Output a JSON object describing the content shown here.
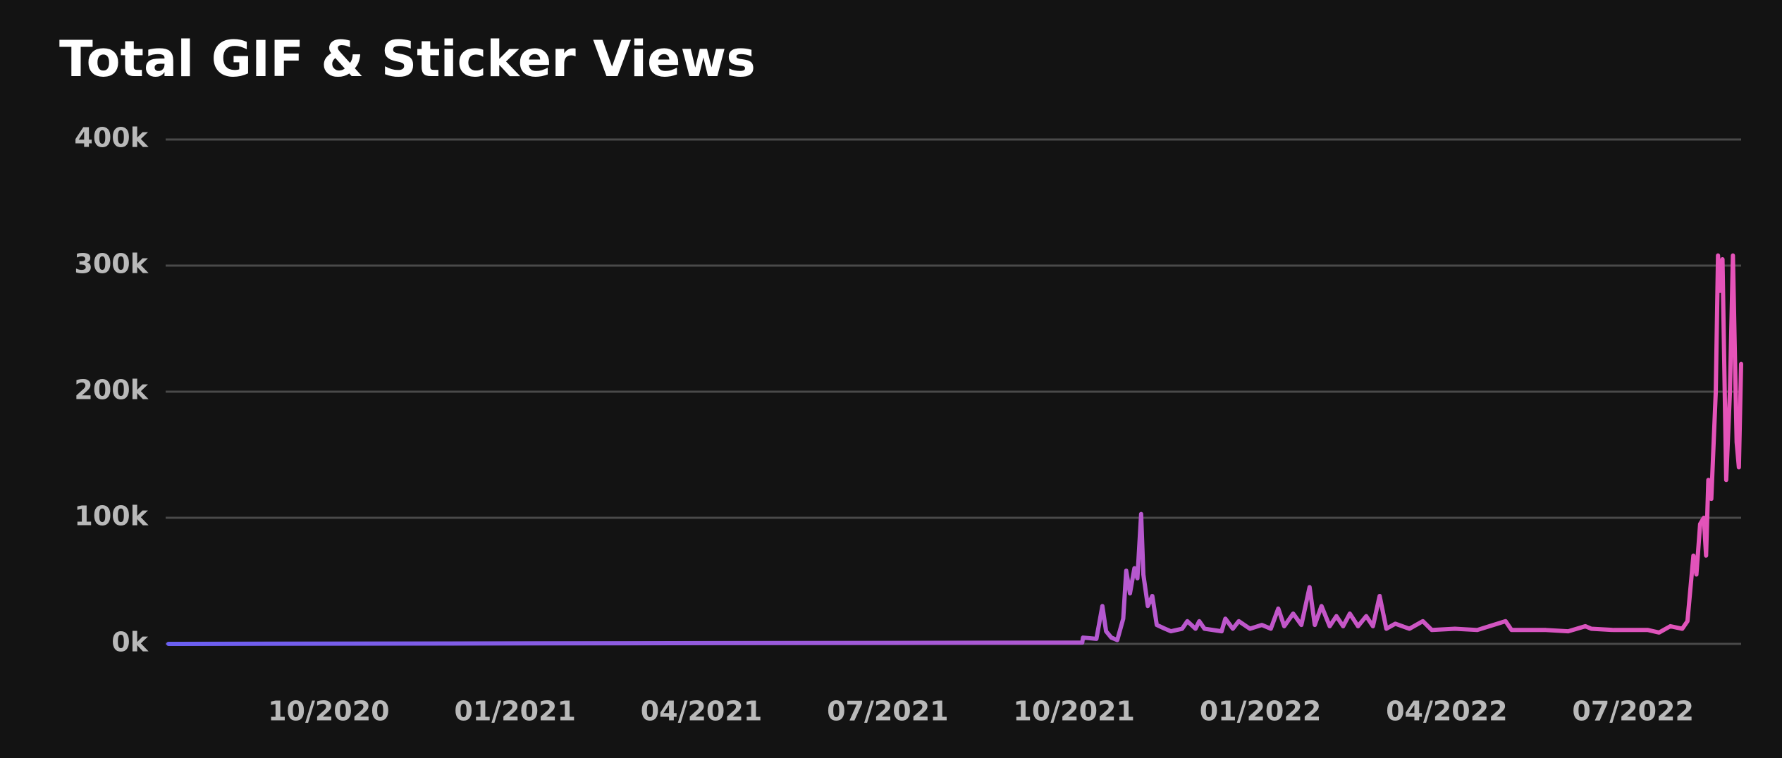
{
  "chart_data": {
    "type": "line",
    "title": "Total GIF & Sticker Views",
    "xlim": [
      2020.535,
      2022.645
    ],
    "xticks": [
      {
        "value": 2020.75,
        "label": "10/2020"
      },
      {
        "value": 2021.0,
        "label": "01/2021"
      },
      {
        "value": 2021.25,
        "label": "04/2021"
      },
      {
        "value": 2021.5,
        "label": "07/2021"
      },
      {
        "value": 2021.75,
        "label": "10/2021"
      },
      {
        "value": 2022.0,
        "label": "01/2022"
      },
      {
        "value": 2022.25,
        "label": "04/2022"
      },
      {
        "value": 2022.5,
        "label": "07/2022"
      }
    ],
    "ylim": [
      0,
      400000
    ],
    "yticks": [
      {
        "value": 0,
        "label": "0k"
      },
      {
        "value": 100000,
        "label": "100k"
      },
      {
        "value": 200000,
        "label": "200k"
      },
      {
        "value": 300000,
        "label": "300k"
      },
      {
        "value": 400000,
        "label": "400k"
      }
    ],
    "grid": true,
    "gradient": [
      "#6a5ff2",
      "#e653b8"
    ],
    "x": [
      2020.535,
      2021.761,
      2021.762,
      2021.78,
      2021.788,
      2021.793,
      2021.8,
      2021.808,
      2021.816,
      2021.82,
      2021.825,
      2021.831,
      2021.835,
      2021.84,
      2021.843,
      2021.849,
      2021.855,
      2021.861,
      2021.872,
      2021.88,
      2021.895,
      2021.902,
      2021.913,
      2021.918,
      2021.925,
      2021.948,
      2021.953,
      2021.963,
      2021.971,
      2021.986,
      2022.002,
      2022.014,
      2022.024,
      2022.032,
      2022.044,
      2022.055,
      2022.066,
      2022.073,
      2022.082,
      2022.093,
      2022.102,
      2022.111,
      2022.12,
      2022.131,
      2022.142,
      2022.151,
      2022.16,
      2022.169,
      2022.181,
      2022.2,
      2022.218,
      2022.23,
      2022.261,
      2022.291,
      2022.329,
      2022.337,
      2022.383,
      2022.413,
      2022.436,
      2022.444,
      2022.474,
      2022.52,
      2022.535,
      2022.55,
      2022.566,
      2022.573,
      2022.581,
      2022.585,
      2022.59,
      2022.595,
      2022.598,
      2022.601,
      2022.605,
      2022.611,
      2022.614,
      2022.617,
      2022.62,
      2022.625,
      2022.63,
      2022.634,
      2022.639,
      2022.642,
      2022.645
    ],
    "values": [
      0,
      1000,
      5000,
      4000,
      30000,
      10000,
      5000,
      3000,
      20000,
      58000,
      40000,
      60000,
      52000,
      103000,
      55000,
      30000,
      38000,
      15000,
      12000,
      10000,
      12000,
      18000,
      12000,
      18000,
      12000,
      10000,
      20000,
      12000,
      18000,
      12000,
      15000,
      12000,
      28000,
      14000,
      24000,
      15000,
      45000,
      15000,
      30000,
      14000,
      22000,
      14000,
      24000,
      14000,
      22000,
      14000,
      38000,
      12000,
      16000,
      12000,
      18000,
      11000,
      12000,
      11000,
      18000,
      11000,
      11000,
      10000,
      14000,
      12000,
      11000,
      11000,
      9000,
      14000,
      12000,
      18000,
      70000,
      55000,
      95000,
      100000,
      70000,
      130000,
      115000,
      200000,
      308000,
      280000,
      305000,
      130000,
      200000,
      308000,
      160000,
      140000,
      222000
    ]
  }
}
